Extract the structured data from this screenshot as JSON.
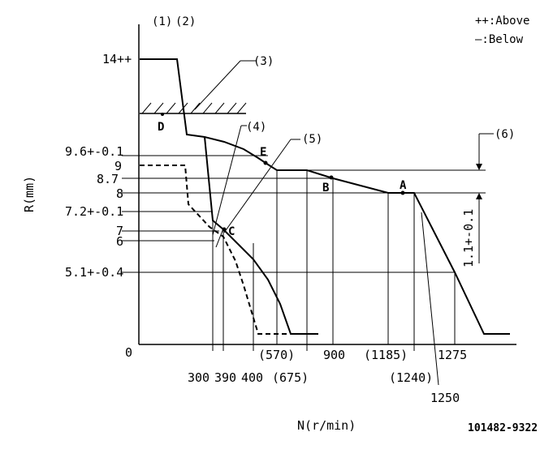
{
  "legend": {
    "above": "++:Above",
    "below": "—:Below"
  },
  "callouts": {
    "c1": "(1)",
    "c2": "(2)",
    "c3": "(3)",
    "c4": "(4)",
    "c5": "(5)",
    "c6": "(6)"
  },
  "y_axis": {
    "title": "R(mm)",
    "ticks": [
      "14++",
      "9.6+-0.1",
      "9",
      "8.7",
      "8",
      "7.2+-0.1",
      "7",
      "6",
      "5.1+-0.4",
      "0"
    ]
  },
  "x_axis": {
    "title": "N(r/min)",
    "ticks": [
      "300",
      "390",
      "400",
      "(570)",
      "(675)",
      "900",
      "(1185)",
      "(1240)",
      "1250",
      "1275"
    ]
  },
  "points": [
    "A",
    "B",
    "C",
    "D",
    "E"
  ],
  "dimension": "1.1+-0.1",
  "figure_code": "101482-9322",
  "style": {
    "line": "#000000",
    "background": "#ffffff"
  }
}
